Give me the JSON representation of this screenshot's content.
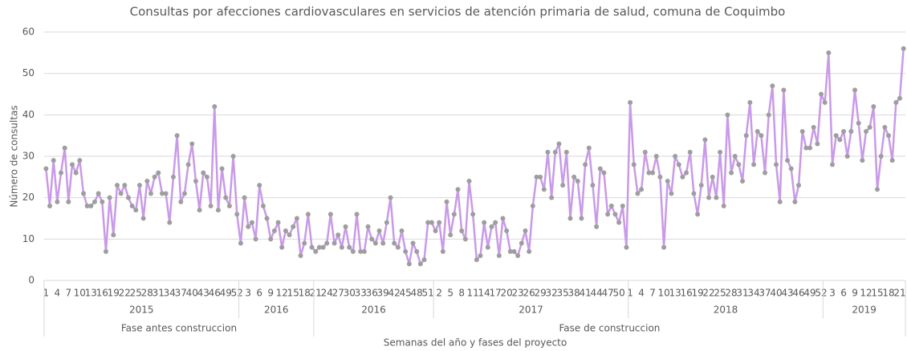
{
  "chart_data": {
    "type": "line",
    "title": "Consultas por afecciones cardiovasculares en servicios de atención primaria de salud, comuna de Coquimbo",
    "y_label": "Número de consultas",
    "x_label": "Semanas del año y fases del proyecto",
    "ylim": [
      0,
      60
    ],
    "yticks": [
      0,
      10,
      20,
      30,
      40,
      50,
      60
    ],
    "grid": true,
    "line_color": "#c99ae8",
    "marker_color": "#9e9e9e",
    "phases": [
      {
        "label": "Fase antes construccion",
        "years": [
          {
            "label": "2015",
            "categories": [
              1,
              null,
              null,
              4,
              null,
              null,
              7,
              null,
              null,
              10,
              null,
              null,
              13,
              null,
              null,
              16,
              null,
              null,
              19,
              null,
              null,
              22,
              null,
              null,
              25,
              null,
              null,
              28,
              null,
              null,
              31,
              null,
              null,
              34,
              null,
              null,
              37,
              null,
              null,
              40,
              null,
              null,
              43,
              null,
              null,
              46,
              null,
              null,
              49,
              null,
              null,
              52
            ],
            "values": [
              27,
              18,
              29,
              19,
              26,
              32,
              19,
              28,
              26,
              29,
              21,
              18,
              18,
              19,
              21,
              19,
              7,
              20,
              11,
              23,
              21,
              23,
              20,
              18,
              17,
              23,
              15,
              24,
              21,
              25,
              26,
              21,
              21,
              14,
              25,
              35,
              19,
              21,
              28,
              33,
              24,
              17,
              26,
              25,
              18,
              42,
              17,
              27,
              20,
              18,
              30,
              16
            ]
          },
          {
            "label": "2016",
            "categories": [
              null,
              null,
              3,
              null,
              null,
              6,
              null,
              null,
              9,
              null,
              null,
              12,
              null,
              null,
              15,
              null,
              null,
              18,
              null,
              null
            ],
            "values": [
              9,
              20,
              13,
              14,
              10,
              23,
              18,
              15,
              10,
              12,
              14,
              8,
              12,
              11,
              13,
              15,
              6,
              9,
              16,
              8
            ]
          }
        ]
      },
      {
        "label": "Fase de construccion",
        "years": [
          {
            "label": "2016",
            "categories": [
              21,
              null,
              null,
              24,
              null,
              null,
              27,
              null,
              null,
              30,
              null,
              null,
              33,
              null,
              null,
              36,
              null,
              null,
              39,
              null,
              null,
              42,
              null,
              null,
              45,
              null,
              null,
              48,
              null,
              null,
              51,
              null
            ],
            "values": [
              7,
              8,
              8,
              9,
              16,
              9,
              11,
              8,
              13,
              8,
              7,
              16,
              7,
              7,
              13,
              10,
              9,
              12,
              9,
              14,
              20,
              9,
              8,
              12,
              7,
              4,
              9,
              7,
              4,
              5,
              14,
              14
            ]
          },
          {
            "label": "2017",
            "categories": [
              null,
              2,
              null,
              null,
              5,
              null,
              null,
              8,
              null,
              null,
              11,
              null,
              null,
              14,
              null,
              null,
              17,
              null,
              null,
              20,
              null,
              null,
              23,
              null,
              null,
              26,
              null,
              null,
              29,
              null,
              null,
              32,
              null,
              null,
              35,
              null,
              null,
              38,
              null,
              null,
              41,
              null,
              null,
              44,
              null,
              null,
              47,
              null,
              null,
              50,
              null,
              null
            ],
            "values": [
              12,
              14,
              7,
              19,
              11,
              16,
              22,
              12,
              10,
              24,
              16,
              5,
              6,
              14,
              8,
              13,
              14,
              6,
              15,
              12,
              7,
              7,
              6,
              9,
              12,
              7,
              18,
              25,
              25,
              22,
              31,
              20,
              31,
              33,
              23,
              31,
              15,
              25,
              24,
              15,
              28,
              32,
              23,
              13,
              27,
              26,
              16,
              18,
              16,
              14,
              18,
              8
            ]
          },
          {
            "label": "2018",
            "categories": [
              1,
              null,
              null,
              4,
              null,
              null,
              7,
              null,
              null,
              10,
              null,
              null,
              13,
              null,
              null,
              16,
              null,
              null,
              19,
              null,
              null,
              22,
              null,
              null,
              25,
              null,
              null,
              28,
              null,
              null,
              31,
              null,
              null,
              34,
              null,
              null,
              37,
              null,
              null,
              40,
              null,
              null,
              43,
              null,
              null,
              46,
              null,
              null,
              49,
              null,
              null,
              52
            ],
            "values": [
              43,
              28,
              21,
              22,
              31,
              26,
              26,
              30,
              25,
              8,
              24,
              21,
              30,
              28,
              25,
              26,
              31,
              21,
              16,
              23,
              34,
              20,
              25,
              20,
              31,
              18,
              40,
              26,
              30,
              28,
              24,
              35,
              43,
              28,
              36,
              35,
              26,
              40,
              47,
              28,
              19,
              46,
              29,
              27,
              19,
              23,
              36,
              32,
              32,
              37,
              33,
              45
            ]
          },
          {
            "label": "2019",
            "categories": [
              null,
              null,
              3,
              null,
              null,
              6,
              null,
              null,
              9,
              null,
              null,
              12,
              null,
              null,
              15,
              null,
              null,
              18,
              null,
              null,
              21,
              null
            ],
            "values": [
              43,
              55,
              28,
              35,
              34,
              36,
              30,
              36,
              46,
              38,
              29,
              36,
              37,
              42,
              22,
              30,
              37,
              35,
              29,
              43,
              44,
              56
            ]
          }
        ]
      }
    ]
  }
}
